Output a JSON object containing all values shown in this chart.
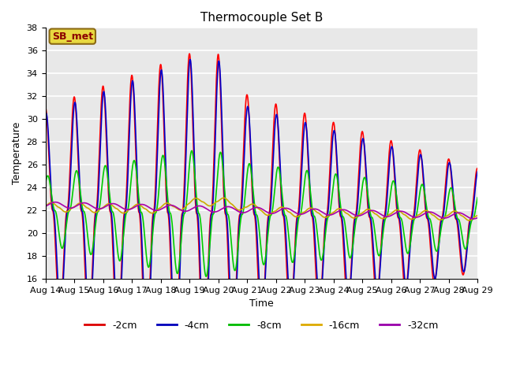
{
  "title": "Thermocouple Set B",
  "xlabel": "Time",
  "ylabel": "Temperature",
  "ylim": [
    16,
    38
  ],
  "xlim": [
    0,
    15
  ],
  "annotation_text": "SB_met",
  "annotation_bg": "#e8d840",
  "annotation_edge": "#8B6914",
  "annotation_color": "#8B0000",
  "series_labels": [
    "-2cm",
    "-4cm",
    "-8cm",
    "-16cm",
    "-32cm"
  ],
  "series_colors": [
    "#ff0000",
    "#0000cc",
    "#00cc00",
    "#ccaa00",
    "#aa00aa"
  ],
  "xtick_labels": [
    "Aug 14",
    "Aug 15",
    "Aug 16",
    "Aug 17",
    "Aug 18",
    "Aug 19",
    "Aug 20",
    "Aug 21",
    "Aug 22",
    "Aug 23",
    "Aug 24",
    "Aug 25",
    "Aug 26",
    "Aug 27",
    "Aug 28",
    "Aug 29"
  ],
  "legend_colors": [
    "#dd0000",
    "#0000bb",
    "#00bb00",
    "#ddaa00",
    "#9900aa"
  ],
  "bg_color": "#e8e8e8"
}
